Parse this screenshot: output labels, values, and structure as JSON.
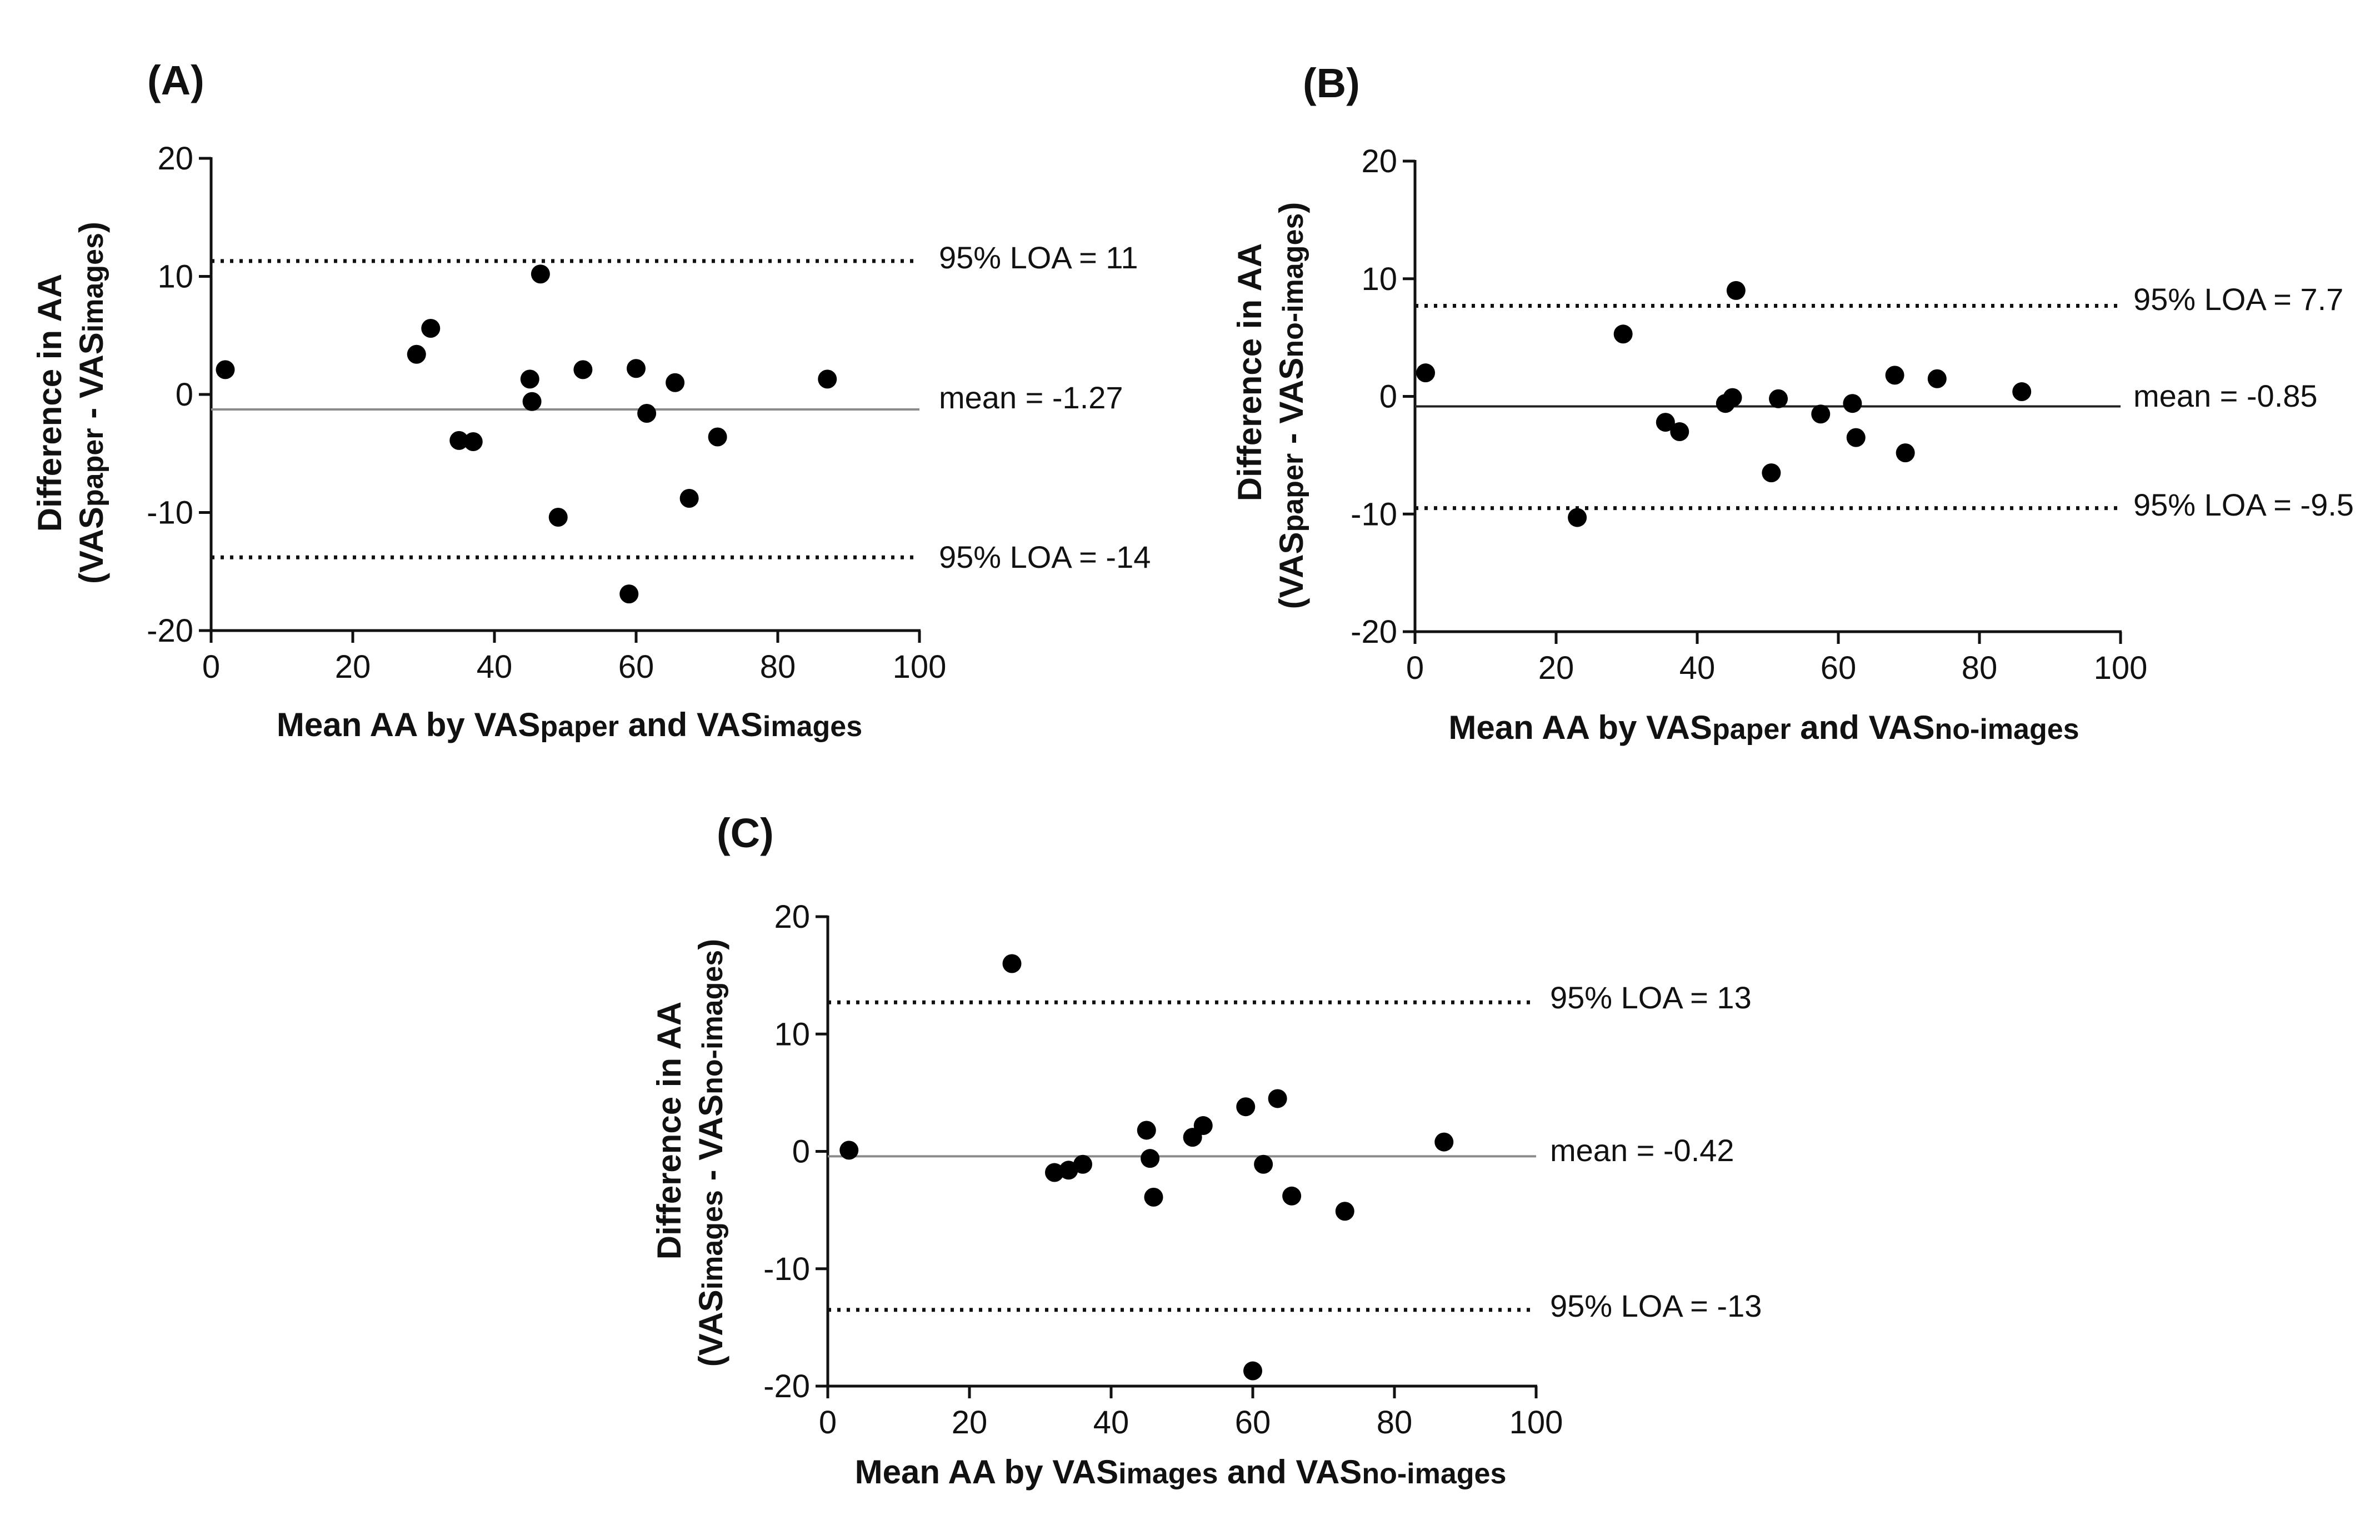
{
  "figure": {
    "panels": [
      {
        "label": "(A)",
        "y_title_line1": "Difference in AA",
        "y_title_line2": {
          "prefix": "(",
          "a": "VAS",
          "a_sub": "paper",
          "sep": " - ",
          "b": "VAS",
          "b_sub": "images",
          "suffix": ")"
        },
        "x_title": {
          "prefix": "Mean AA by ",
          "a": "VAS",
          "a_sub": "paper",
          "mid": " and ",
          "b": "VAS",
          "b_sub": "images"
        },
        "mean_label": "mean = -1.27",
        "upper_label": "95% LOA = 11",
        "lower_label": "95% LOA = -14"
      },
      {
        "label": "(B)",
        "y_title_line1": "Difference in AA",
        "y_title_line2": {
          "prefix": "(",
          "a": "VAS",
          "a_sub": "paper",
          "sep": " - ",
          "b": "VAS",
          "b_sub": "no-images",
          "suffix": ")"
        },
        "x_title": {
          "prefix": "Mean AA by ",
          "a": "VAS",
          "a_sub": "paper",
          "mid": " and ",
          "b": "VAS",
          "b_sub": "no-images"
        },
        "mean_label": "mean = -0.85",
        "upper_label": "95% LOA = 7.7",
        "lower_label": "95% LOA = -9.5"
      },
      {
        "label": "(C)",
        "y_title_line1": "Difference in AA",
        "y_title_line2": {
          "prefix": "(",
          "a": "VAS",
          "a_sub": "images",
          "sep": " - ",
          "b": "VAS",
          "b_sub": "no-images",
          "suffix": ")"
        },
        "x_title": {
          "prefix": "Mean AA by ",
          "a": "VAS",
          "a_sub": "images",
          "mid": " and ",
          "b": "VAS",
          "b_sub": "no-images"
        },
        "mean_label": "mean = -0.42",
        "upper_label": "95% LOA = 13",
        "lower_label": "95% LOA = -13"
      }
    ]
  },
  "chart_data": [
    {
      "type": "scatter",
      "title": "(A)",
      "xlabel": "Mean AA by VASpaper and VASimages",
      "ylabel": "Difference in AA (VASpaper - VASimages)",
      "xlim": [
        0,
        100
      ],
      "ylim": [
        -20,
        20
      ],
      "xticks": [
        0,
        20,
        40,
        60,
        80,
        100
      ],
      "yticks": [
        -20,
        -10,
        0,
        10,
        20
      ],
      "mean": -1.27,
      "loa_upper": 11.3,
      "loa_lower": -13.8,
      "mean_line_color": "#8a8a8a",
      "points": [
        {
          "x": 2,
          "y": 2.1
        },
        {
          "x": 29,
          "y": 3.4
        },
        {
          "x": 31,
          "y": 5.6
        },
        {
          "x": 35,
          "y": -3.9
        },
        {
          "x": 37,
          "y": -4.0
        },
        {
          "x": 45,
          "y": 1.3
        },
        {
          "x": 45.3,
          "y": -0.6
        },
        {
          "x": 46.5,
          "y": 10.2
        },
        {
          "x": 49,
          "y": -10.4
        },
        {
          "x": 52.5,
          "y": 2.1
        },
        {
          "x": 59,
          "y": -16.9
        },
        {
          "x": 60,
          "y": 2.2
        },
        {
          "x": 61.5,
          "y": -1.6
        },
        {
          "x": 65.5,
          "y": 1.0
        },
        {
          "x": 67.5,
          "y": -8.8
        },
        {
          "x": 71.5,
          "y": -3.6
        },
        {
          "x": 87,
          "y": 1.3
        }
      ]
    },
    {
      "type": "scatter",
      "title": "(B)",
      "xlabel": "Mean AA by VASpaper and VASno-images",
      "ylabel": "Difference in AA (VASpaper - VASno-images)",
      "xlim": [
        0,
        100
      ],
      "ylim": [
        -20,
        20
      ],
      "xticks": [
        0,
        20,
        40,
        60,
        80,
        100
      ],
      "yticks": [
        -20,
        -10,
        0,
        10,
        20
      ],
      "mean": -0.85,
      "loa_upper": 7.7,
      "loa_lower": -9.5,
      "mean_line_color": "#222222",
      "points": [
        {
          "x": 1.5,
          "y": 2.0
        },
        {
          "x": 23,
          "y": -10.3
        },
        {
          "x": 29.5,
          "y": 5.3
        },
        {
          "x": 35.5,
          "y": -2.2
        },
        {
          "x": 37.5,
          "y": -3.0
        },
        {
          "x": 44,
          "y": -0.6
        },
        {
          "x": 45,
          "y": -0.1
        },
        {
          "x": 45.5,
          "y": 9.0
        },
        {
          "x": 50.5,
          "y": -6.5
        },
        {
          "x": 51.5,
          "y": -0.2
        },
        {
          "x": 57.5,
          "y": -1.5
        },
        {
          "x": 62,
          "y": -0.6
        },
        {
          "x": 62.5,
          "y": -3.5
        },
        {
          "x": 68,
          "y": 1.8
        },
        {
          "x": 69.5,
          "y": -4.8
        },
        {
          "x": 74,
          "y": 1.5
        },
        {
          "x": 86,
          "y": 0.4
        }
      ]
    },
    {
      "type": "scatter",
      "title": "(C)",
      "xlabel": "Mean AA by VASimages and VASno-images",
      "ylabel": "Difference in AA (VASimages - VASno-images)",
      "xlim": [
        0,
        100
      ],
      "ylim": [
        -20,
        20
      ],
      "xticks": [
        0,
        20,
        40,
        60,
        80,
        100
      ],
      "yticks": [
        -20,
        -10,
        0,
        10,
        20
      ],
      "mean": -0.42,
      "loa_upper": 12.7,
      "loa_lower": -13.5,
      "mean_line_color": "#8a8a8a",
      "points": [
        {
          "x": 3,
          "y": 0.1
        },
        {
          "x": 26,
          "y": 16.0
        },
        {
          "x": 32,
          "y": -1.8
        },
        {
          "x": 34,
          "y": -1.6
        },
        {
          "x": 36,
          "y": -1.1
        },
        {
          "x": 45,
          "y": 1.8
        },
        {
          "x": 45.5,
          "y": -0.6
        },
        {
          "x": 46,
          "y": -3.9
        },
        {
          "x": 51.5,
          "y": 1.2
        },
        {
          "x": 53,
          "y": 2.2
        },
        {
          "x": 59,
          "y": 3.8
        },
        {
          "x": 60,
          "y": -18.7
        },
        {
          "x": 61.5,
          "y": -1.1
        },
        {
          "x": 63.5,
          "y": 4.5
        },
        {
          "x": 65.5,
          "y": -3.8
        },
        {
          "x": 73,
          "y": -5.1
        },
        {
          "x": 87,
          "y": 0.8
        }
      ]
    }
  ]
}
